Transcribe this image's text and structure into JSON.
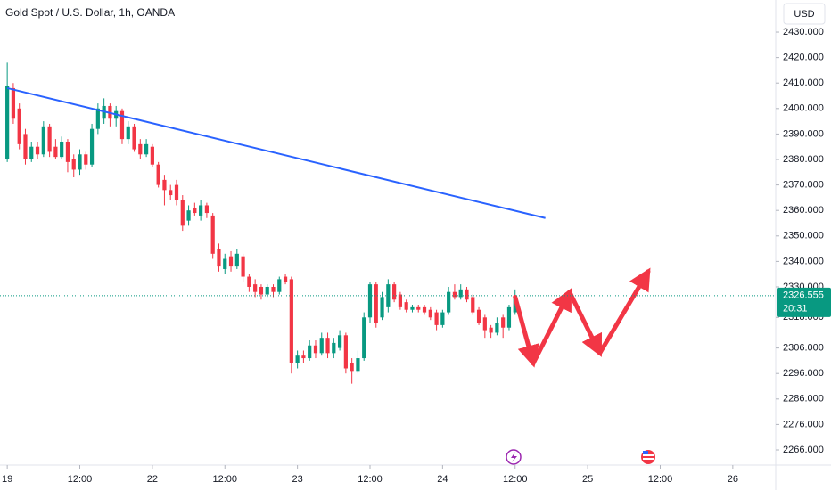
{
  "chart_data": {
    "type": "candlestick",
    "title": "Gold Spot / U.S. Dollar, 1h, OANDA",
    "currency": "USD",
    "countdown": "20:31",
    "up_color": "#089981",
    "down_color": "#f23645",
    "grid": false,
    "x": [
      0,
      1,
      2,
      3,
      4,
      5,
      6,
      7,
      8,
      9,
      10,
      11,
      12,
      13,
      14,
      15,
      16,
      17,
      18,
      19,
      20,
      21,
      22,
      23,
      24,
      25,
      26,
      27,
      28,
      29,
      30,
      31,
      32,
      33,
      34,
      35,
      36,
      37,
      38,
      39,
      40,
      41,
      42,
      43,
      44,
      45,
      46,
      47,
      48,
      49,
      50,
      51,
      52,
      53,
      54,
      55,
      56,
      57,
      58,
      59,
      60,
      61,
      62,
      63,
      64,
      65,
      66,
      67,
      68,
      69,
      70,
      71,
      72,
      73,
      74,
      75,
      76,
      77,
      78,
      79,
      80,
      81,
      82,
      83,
      84
    ],
    "open": [
      2380,
      2408,
      2400,
      2390,
      2380,
      2385,
      2382,
      2393,
      2385,
      2381,
      2387,
      2380,
      2376,
      2382,
      2378,
      2392,
      2396,
      2401,
      2396,
      2399,
      2388,
      2393,
      2386,
      2382,
      2385,
      2378,
      2372,
      2368,
      2370,
      2364,
      2356,
      2361,
      2358,
      2362,
      2358,
      2345,
      2337,
      2342,
      2338,
      2342,
      2334,
      2331,
      2330,
      2327,
      2330,
      2328,
      2334,
      2333,
      2300,
      2303,
      2302,
      2307,
      2304,
      2310,
      2304,
      2306,
      2311,
      2300,
      2297,
      2302,
      2318,
      2331,
      2318,
      2322,
      2331,
      2327,
      2324,
      2321,
      2322,
      2322,
      2321,
      2320,
      2315,
      2320,
      2328,
      2326,
      2329,
      2326,
      2321,
      2318,
      2314,
      2312,
      2318,
      2314,
      2320
    ],
    "high": [
      2418,
      2410,
      2402,
      2392,
      2387,
      2387,
      2395,
      2394,
      2388,
      2389,
      2388,
      2382,
      2384,
      2383,
      2394,
      2402,
      2404,
      2402,
      2401,
      2400,
      2395,
      2394,
      2388,
      2388,
      2386,
      2379,
      2374,
      2370,
      2372,
      2366,
      2362,
      2363,
      2364,
      2363,
      2359,
      2347,
      2343,
      2344,
      2345,
      2343,
      2335,
      2333,
      2331,
      2331,
      2331,
      2334,
      2335,
      2334,
      2305,
      2305,
      2309,
      2309,
      2312,
      2312,
      2310,
      2313,
      2312,
      2302,
      2305,
      2320,
      2332,
      2332,
      2328,
      2333,
      2332,
      2328,
      2325,
      2323,
      2323,
      2323,
      2322,
      2321,
      2321,
      2330,
      2331,
      2331,
      2330,
      2327,
      2322,
      2319,
      2315,
      2318,
      2319,
      2323,
      2329
    ],
    "low": [
      2379,
      2394,
      2384,
      2378,
      2379,
      2380,
      2381,
      2381,
      2380,
      2380,
      2375,
      2373,
      2374,
      2376,
      2377,
      2390,
      2394,
      2393,
      2393,
      2386,
      2386,
      2383,
      2380,
      2381,
      2377,
      2369,
      2362,
      2364,
      2362,
      2352,
      2354,
      2358,
      2356,
      2357,
      2341,
      2336,
      2335,
      2336,
      2337,
      2332,
      2328,
      2326,
      2325,
      2326,
      2326,
      2327,
      2331,
      2296,
      2298,
      2300,
      2301,
      2302,
      2303,
      2302,
      2302,
      2305,
      2296,
      2292,
      2296,
      2301,
      2316,
      2314,
      2317,
      2320,
      2324,
      2321,
      2320,
      2320,
      2320,
      2319,
      2317,
      2313,
      2314,
      2319,
      2325,
      2325,
      2324,
      2319,
      2315,
      2310,
      2310,
      2311,
      2310,
      2313,
      2319
    ],
    "close": [
      2409,
      2396,
      2386,
      2380,
      2385,
      2382,
      2393,
      2383,
      2381,
      2387,
      2379,
      2376,
      2382,
      2378,
      2392,
      2400,
      2401,
      2396,
      2399,
      2388,
      2393,
      2384,
      2382,
      2386,
      2378,
      2370,
      2368,
      2366,
      2364,
      2354,
      2360,
      2359,
      2362,
      2359,
      2343,
      2338,
      2341,
      2338,
      2343,
      2334,
      2330,
      2328,
      2327,
      2330,
      2328,
      2333,
      2332,
      2300,
      2303,
      2302,
      2307,
      2304,
      2310,
      2304,
      2308,
      2311,
      2298,
      2297,
      2302,
      2318,
      2331,
      2316,
      2326,
      2331,
      2325,
      2322,
      2321,
      2322,
      2321,
      2320,
      2318,
      2315,
      2320,
      2328,
      2326,
      2329,
      2325,
      2320,
      2316,
      2313,
      2312,
      2316,
      2314,
      2322,
      2326.555
    ],
    "trendline": {
      "x": [
        0,
        89
      ],
      "y": [
        2408,
        2357
      ],
      "color": "#2962ff"
    },
    "projection": {
      "x": [
        84,
        87,
        93,
        98,
        106
      ],
      "y": [
        2326,
        2300,
        2328,
        2304,
        2336
      ],
      "color": "#f23645"
    },
    "xlim": [
      -1.2,
      127.1
    ],
    "ylim": [
      2262.5,
      2442.6
    ],
    "xticks": [
      {
        "value": 0,
        "label": "19"
      },
      {
        "value": 12,
        "label": "12:00"
      },
      {
        "value": 24,
        "label": "22"
      },
      {
        "value": 36,
        "label": "12:00"
      },
      {
        "value": 48,
        "label": "23"
      },
      {
        "value": 60,
        "label": "12:00"
      },
      {
        "value": 72,
        "label": "24"
      },
      {
        "value": 84,
        "label": "12:00"
      },
      {
        "value": 96,
        "label": "25"
      },
      {
        "value": 108,
        "label": "12:00"
      },
      {
        "value": 120,
        "label": "26"
      }
    ],
    "yticks": [
      {
        "value": 2430,
        "label": "2430.000"
      },
      {
        "value": 2420,
        "label": "2420.000"
      },
      {
        "value": 2410,
        "label": "2410.000"
      },
      {
        "value": 2400,
        "label": "2400.000"
      },
      {
        "value": 2390,
        "label": "2390.000"
      },
      {
        "value": 2380,
        "label": "2380.000"
      },
      {
        "value": 2370,
        "label": "2370.000"
      },
      {
        "value": 2360,
        "label": "2360.000"
      },
      {
        "value": 2350,
        "label": "2350.000"
      },
      {
        "value": 2340,
        "label": "2340.000"
      },
      {
        "value": 2330,
        "label": "2330.000"
      },
      {
        "value": 2318,
        "label": "2318.000"
      },
      {
        "value": 2306,
        "label": "2306.000"
      },
      {
        "value": 2296,
        "label": "2296.000"
      },
      {
        "value": 2286,
        "label": "2286.000"
      },
      {
        "value": 2276,
        "label": "2276.000"
      },
      {
        "value": 2266,
        "label": "2266.000"
      }
    ]
  }
}
